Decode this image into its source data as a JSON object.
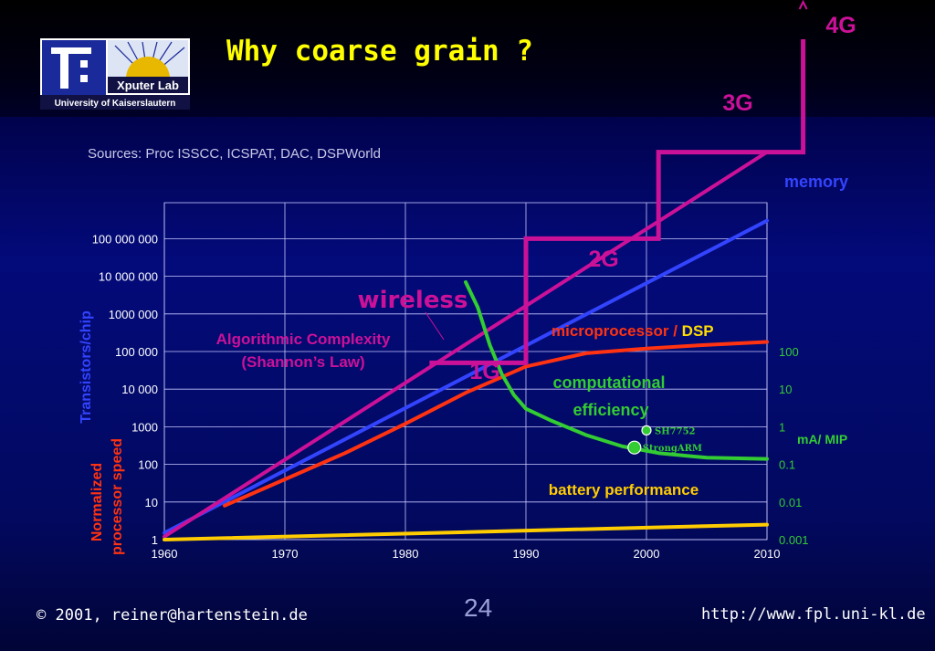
{
  "slide": {
    "title": "Why coarse grain ?",
    "sources": "Sources: Proc ISSCC, ICSPAT, DAC, DSPWorld",
    "logo": {
      "lab": "Xputer Lab",
      "university": "University of Kaiserslautern"
    },
    "footer": {
      "copyright_symbol": "©",
      "copyright": "2001, reiner@hartenstein.de",
      "page": "24",
      "url": "http://www.fpl.uni-kl.de"
    },
    "colors": {
      "title": "#ffff00",
      "memory": "#3344ff",
      "algorithmic": "#cc1199",
      "microprocessor": "#ff3311",
      "efficiency": "#33cc33",
      "battery": "#ffcc00",
      "wireless": "#cc1199"
    }
  },
  "chart_data": {
    "type": "line",
    "xlim": [
      1960,
      2010
    ],
    "x_ticks": [
      "1960",
      "1970",
      "1980",
      "1990",
      "2000",
      "2010"
    ],
    "y_ticks": [
      "1",
      "10",
      "100",
      "1000",
      "10 000",
      "100 000",
      "1000 000",
      "10 000 000",
      "100 000 000"
    ],
    "ylabel": "Transistors/chip",
    "ylabel2": [
      "Normalized",
      "processor speed"
    ],
    "right_ticks": [
      "0.001",
      "0.01",
      "0.1",
      "1",
      "10",
      "100"
    ],
    "right_unit": "mA/ MIP",
    "series": [
      {
        "name": "memory",
        "color": "#3344ff",
        "points": [
          [
            1960,
            1.5
          ],
          [
            2010,
            300000000
          ]
        ]
      },
      {
        "name": "Algorithmic Complexity (Shannon's Law)",
        "color": "#cc1199",
        "points": [
          [
            1960,
            1.2
          ],
          [
            2010,
            20000000000
          ]
        ]
      },
      {
        "name": "microprocessor / DSP",
        "color": "#ff3311",
        "points": [
          [
            1965,
            8
          ],
          [
            1970,
            40
          ],
          [
            1975,
            200
          ],
          [
            1980,
            1200
          ],
          [
            1985,
            8000
          ],
          [
            1990,
            40000
          ],
          [
            1995,
            90000
          ],
          [
            2000,
            120000
          ],
          [
            2005,
            150000
          ],
          [
            2010,
            180000
          ]
        ]
      },
      {
        "name": "computational efficiency",
        "color": "#33cc33",
        "points": [
          [
            1985,
            7000000
          ],
          [
            1986,
            1500000
          ],
          [
            1987,
            150000
          ],
          [
            1988,
            25000
          ],
          [
            1989,
            7000
          ],
          [
            1990,
            3000
          ],
          [
            1992,
            1500
          ],
          [
            1995,
            600
          ],
          [
            1998,
            300
          ],
          [
            2001,
            200
          ],
          [
            2005,
            150
          ],
          [
            2010,
            140
          ]
        ]
      },
      {
        "name": "battery performance",
        "color": "#ffcc00",
        "points": [
          [
            1960,
            1
          ],
          [
            2010,
            2.5
          ]
        ]
      }
    ],
    "wireless": {
      "label": "wireless",
      "generations": [
        "1G",
        "2G",
        "3G",
        "4G"
      ],
      "steps": [
        [
          1982,
          50000
        ],
        [
          1990,
          50000
        ],
        [
          1990,
          100000000
        ],
        [
          2001,
          100000000
        ],
        [
          2001,
          20000000000
        ],
        [
          2013,
          20000000000
        ],
        [
          2013,
          20000000000000
        ]
      ]
    },
    "annotations": {
      "memory": "memory",
      "algorithmic": [
        "Algorithmic Complexity",
        "(Shannon’s Law)"
      ],
      "microprocessor_prefix": "microprocessor / ",
      "microprocessor_suffix": "DSP",
      "efficiency": [
        "computational",
        "efficiency"
      ],
      "battery": "battery performance"
    },
    "points": [
      {
        "label": "SH7752",
        "x": 2000,
        "y": 0.8
      },
      {
        "label": "StrongARM",
        "x": 1999,
        "y": 0.28
      }
    ]
  }
}
